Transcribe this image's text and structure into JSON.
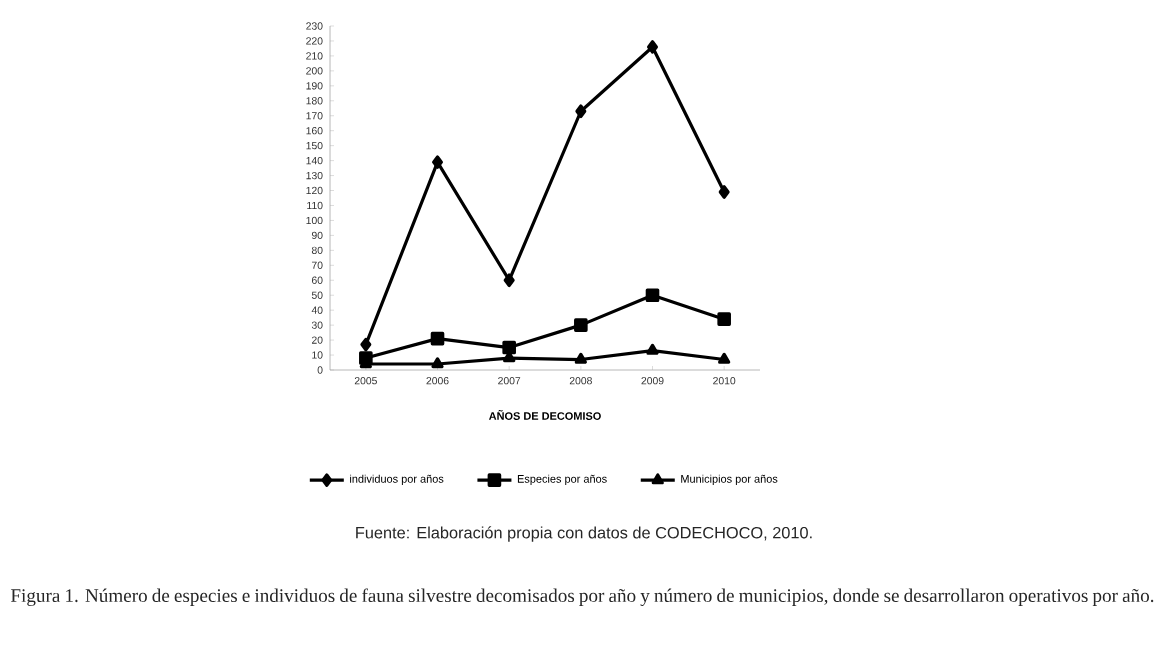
{
  "chart_data": {
    "type": "line",
    "xlabel": "AÑOS DE DECOMISO",
    "categories": [
      "2005",
      "2006",
      "2007",
      "2008",
      "2009",
      "2010"
    ],
    "series": [
      {
        "name": "individuos por años",
        "color": "#000000",
        "marker": "diamond",
        "values": [
          17,
          139,
          60,
          173,
          216,
          119
        ]
      },
      {
        "name": "Especies por años",
        "color": "#000000",
        "marker": "square",
        "values": [
          8,
          21,
          15,
          30,
          50,
          34
        ]
      },
      {
        "name": "Municipios por años",
        "color": "#000000",
        "marker": "triangle",
        "values": [
          4,
          4,
          8,
          7,
          13,
          7
        ]
      }
    ],
    "ylim": [
      0,
      230
    ],
    "yticks": [
      0,
      10,
      20,
      30,
      40,
      50,
      60,
      70,
      80,
      90,
      100,
      110,
      120,
      130,
      140,
      150,
      160,
      170,
      180,
      190,
      200,
      210,
      220,
      230
    ],
    "grid": false,
    "legend": "bottom",
    "line_style": "solid",
    "annotations": [
      "Fuente: Elaboración propia con datos de CODECHOCO, 2010.",
      "Figura 1. Número de especies e individuos de fauna silvestre decomisados por año y número de municipios, donde se desarrollaron operativos por año."
    ]
  }
}
